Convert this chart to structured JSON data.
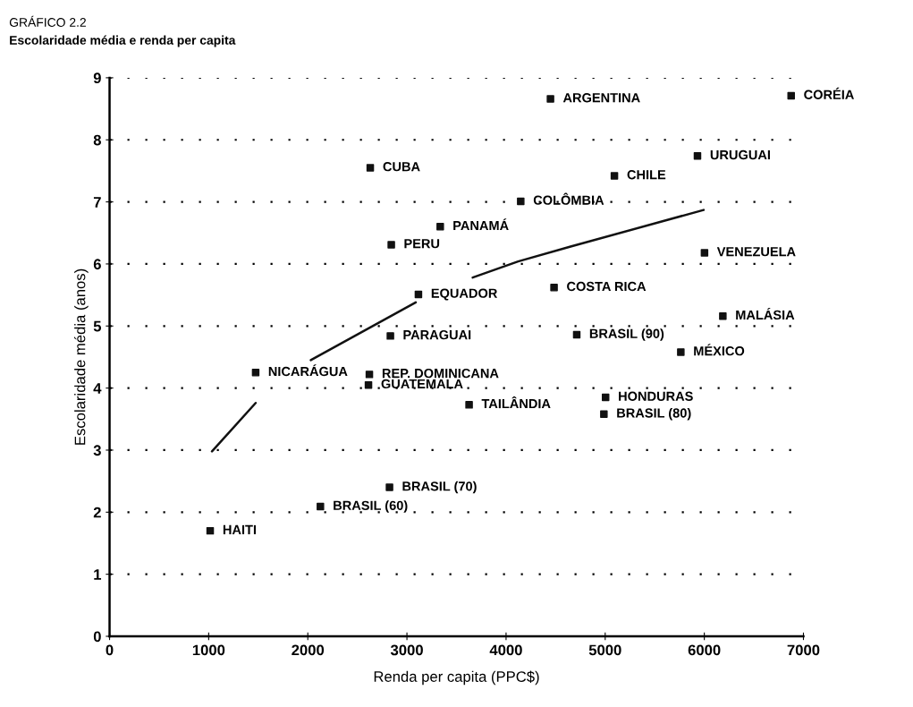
{
  "chart_data": {
    "type": "scatter",
    "title": "GRÁFICO 2.2",
    "subtitle": "Escolaridade média e renda per capita",
    "xlabel": "Renda per capita (PPC$)",
    "ylabel": "Escolaridade média (anos)",
    "xlim": [
      0,
      7000
    ],
    "xticks": [
      0,
      1000,
      2000,
      3000,
      4000,
      5000,
      6000,
      7000
    ],
    "ylim": [
      0,
      9
    ],
    "yticks": [
      0,
      1,
      2,
      3,
      4,
      5,
      6,
      7,
      8,
      9
    ],
    "grid": "y",
    "legend": false,
    "series": [
      {
        "marker": "square",
        "color": "#111111",
        "x": [
          2630,
          3336,
          2842,
          3116,
          2833,
          1474,
          2621,
          2612,
          3627,
          2824,
          2127,
          1015,
          4448,
          6876,
          5931,
          5093,
          4148,
          6002,
          4484,
          6187,
          4713,
          5763,
          5004,
          4987
        ],
        "values": [
          7.55,
          6.6,
          6.31,
          5.51,
          4.84,
          4.25,
          4.22,
          4.05,
          3.73,
          2.4,
          2.09,
          1.7,
          8.66,
          8.71,
          7.74,
          7.42,
          7.01,
          6.18,
          5.62,
          5.16,
          4.86,
          4.58,
          3.85,
          3.58
        ]
      },
      {
        "type": "line",
        "color": "#111111",
        "line_style": "solid",
        "x": [
          1033,
          1474,
          1750,
          2030,
          3089,
          3376,
          3663,
          4122,
          4651,
          5993
        ],
        "values": [
          2.98,
          3.76,
          null,
          4.45,
          5.38,
          null,
          5.78,
          6.04,
          6.28,
          6.87
        ]
      }
    ],
    "annotations": [
      {
        "text": "CUBA",
        "x": 2630,
        "y": 7.55
      },
      {
        "text": "PANAMÁ",
        "x": 3336,
        "y": 6.6
      },
      {
        "text": "PERU",
        "x": 2842,
        "y": 6.31
      },
      {
        "text": "EQUADOR",
        "x": 3116,
        "y": 5.51
      },
      {
        "text": "PARAGUAI",
        "x": 2833,
        "y": 4.84
      },
      {
        "text": "NICARÁGUA",
        "x": 1474,
        "y": 4.25
      },
      {
        "text": "REP. DOMINICANA",
        "x": 2621,
        "y": 4.22
      },
      {
        "text": "GUATEMALA",
        "x": 2612,
        "y": 4.05
      },
      {
        "text": "TAILÂNDIA",
        "x": 3627,
        "y": 3.73
      },
      {
        "text": "BRASIL (70)",
        "x": 2824,
        "y": 2.4
      },
      {
        "text": "BRASIL (60)",
        "x": 2127,
        "y": 2.09
      },
      {
        "text": "HAITI",
        "x": 1015,
        "y": 1.7
      },
      {
        "text": "ARGENTINA",
        "x": 4448,
        "y": 8.66
      },
      {
        "text": "CORÉIA",
        "x": 6876,
        "y": 8.71
      },
      {
        "text": "URUGUAI",
        "x": 5931,
        "y": 7.74
      },
      {
        "text": "CHILE",
        "x": 5093,
        "y": 7.42
      },
      {
        "text": "COLÔMBIA",
        "x": 4148,
        "y": 7.01
      },
      {
        "text": "VENEZUELA",
        "x": 6002,
        "y": 6.18
      },
      {
        "text": "COSTA RICA",
        "x": 4484,
        "y": 5.62
      },
      {
        "text": "MALÁSIA",
        "x": 6187,
        "y": 5.16
      },
      {
        "text": "BRASIL (90)",
        "x": 4713,
        "y": 4.86
      },
      {
        "text": "MÉXICO",
        "x": 5763,
        "y": 4.58
      },
      {
        "text": "HONDURAS",
        "x": 5004,
        "y": 3.85
      },
      {
        "text": "BRASIL (80)",
        "x": 4987,
        "y": 3.58
      }
    ]
  }
}
